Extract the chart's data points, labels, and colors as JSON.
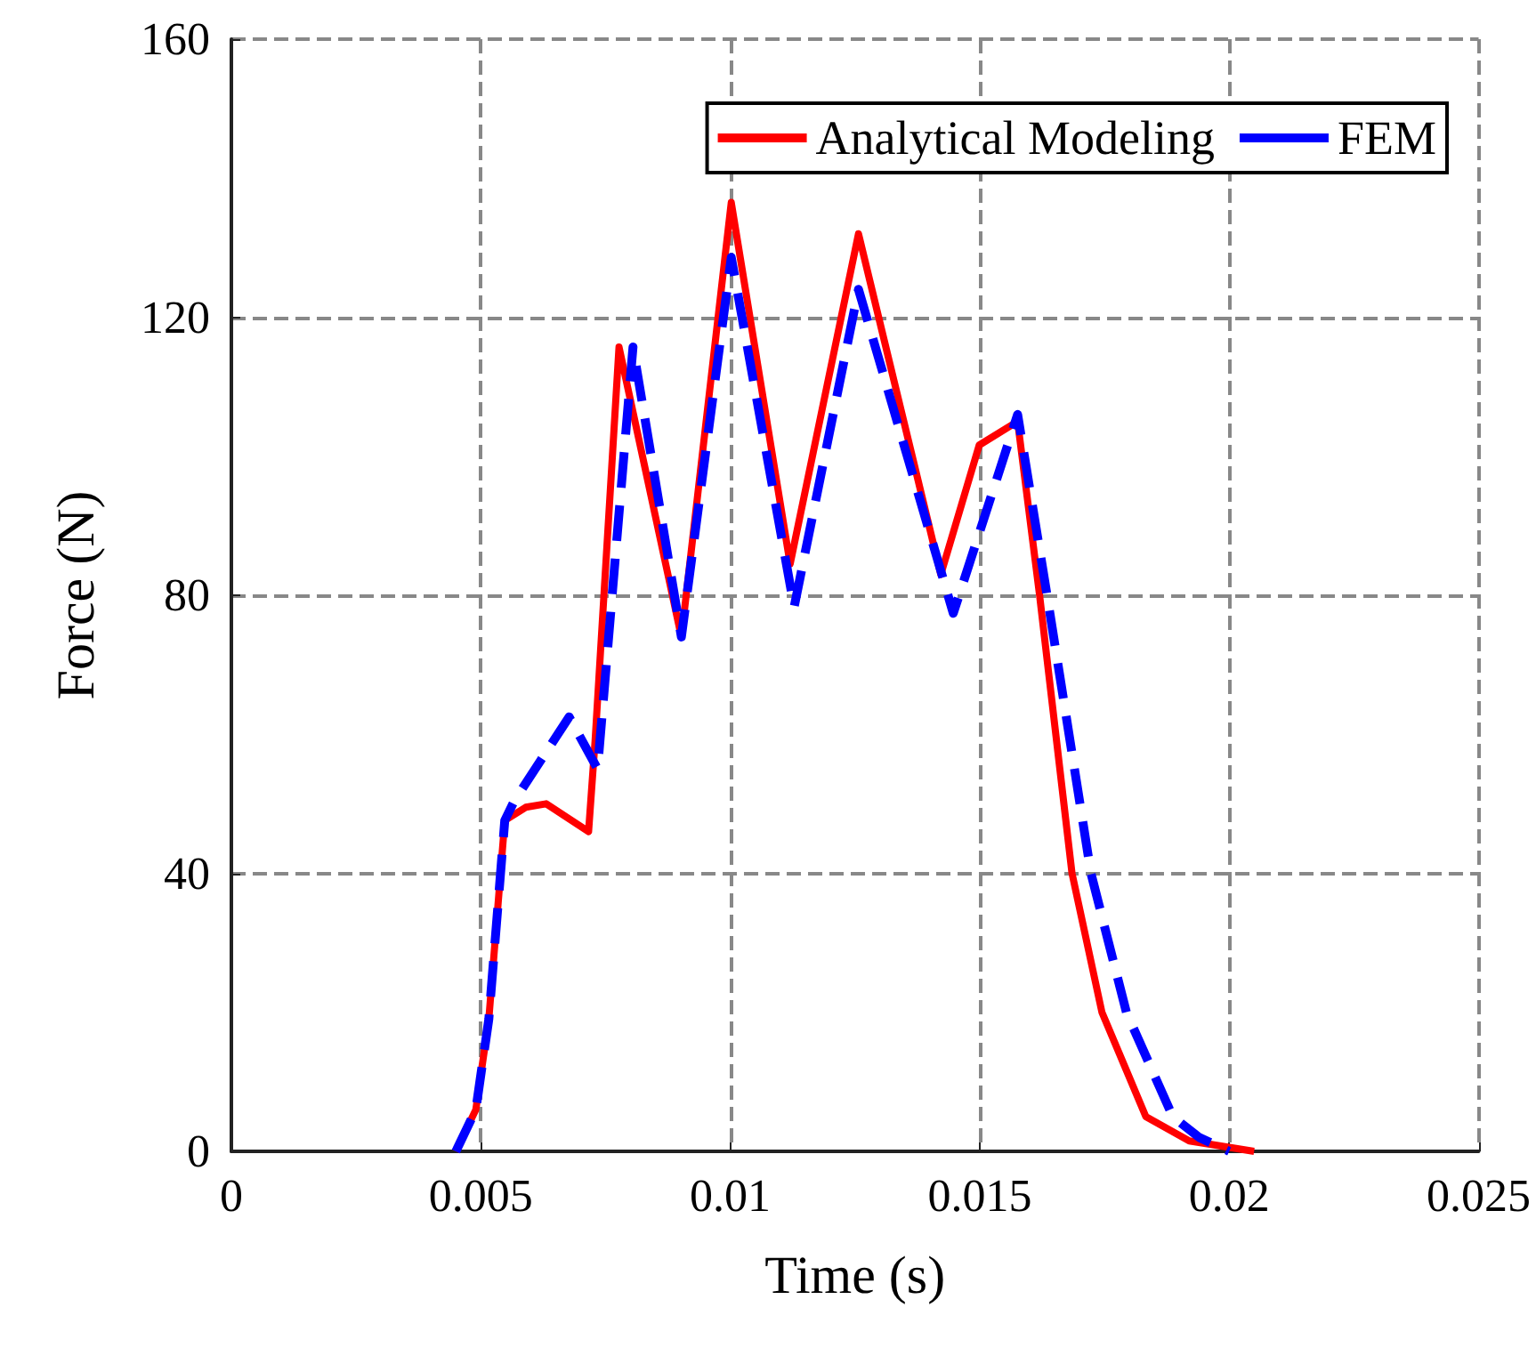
{
  "chart_data": {
    "type": "line",
    "xlabel": "Time (s)",
    "ylabel": "Force (N)",
    "xlim": [
      0,
      0.025
    ],
    "xticks": [
      0,
      0.005,
      0.01,
      0.015,
      0.02,
      0.025
    ],
    "ylim": [
      0,
      160
    ],
    "yticks": [
      0,
      40,
      80,
      120,
      160
    ],
    "grid": true,
    "legend": "top right",
    "marker": "none",
    "series": [
      {
        "name": "Analytical Modeling",
        "color": "#ff0000",
        "line_style": "solid",
        "x": [
          0.0045,
          0.0049,
          0.00516,
          0.00548,
          0.0059,
          0.00631,
          0.00716,
          0.00729,
          0.00777,
          0.00902,
          0.01002,
          0.0112,
          0.01257,
          0.01422,
          0.01499,
          0.01576,
          0.0162,
          0.01685,
          0.01745,
          0.01833,
          0.0192,
          0.0205
        ],
        "values": [
          0,
          6,
          19,
          47.6,
          49.5,
          50,
          46,
          59,
          115.7,
          74,
          136.5,
          84.5,
          132,
          83,
          101.6,
          105,
          80,
          40,
          20,
          5,
          1.5,
          0
        ]
      },
      {
        "name": "FEM",
        "color": "#0000ff",
        "line_style": "dashed",
        "x": [
          0.0045,
          0.0049,
          0.00516,
          0.00548,
          0.00567,
          0.00677,
          0.00734,
          0.00805,
          0.00902,
          0.01002,
          0.01128,
          0.01257,
          0.01447,
          0.01576,
          0.01635,
          0.01723,
          0.01794,
          0.01887,
          0.0194,
          0.02
        ],
        "values": [
          0,
          6,
          19,
          47.6,
          50.4,
          62.5,
          55,
          115.7,
          74,
          128.6,
          78.3,
          124,
          77.4,
          106,
          80,
          40,
          20,
          5,
          2,
          0
        ]
      }
    ]
  }
}
